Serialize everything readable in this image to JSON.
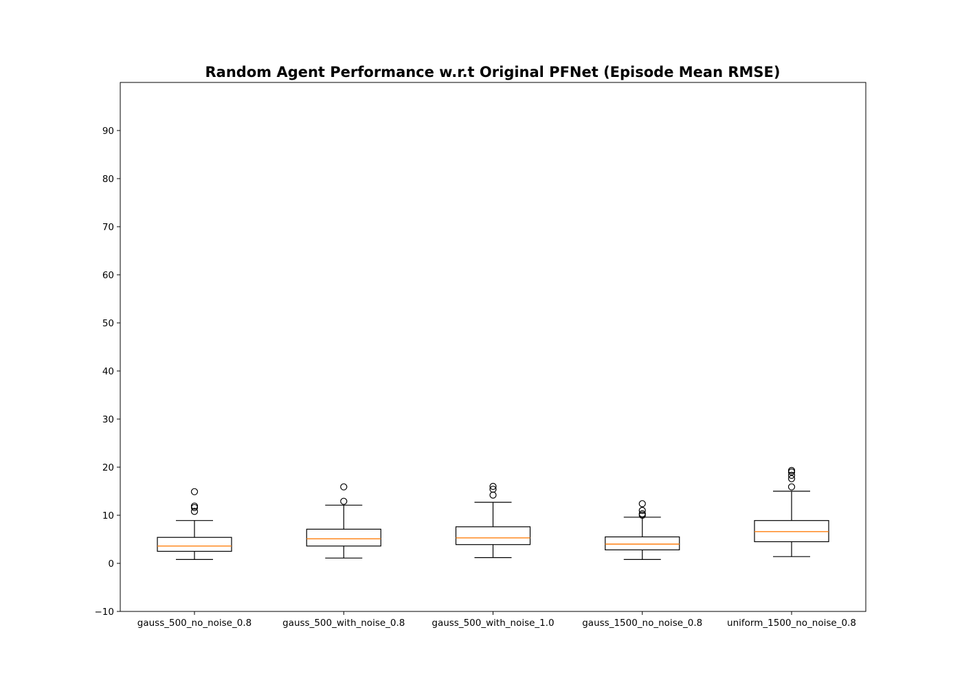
{
  "chart_data": {
    "type": "box",
    "title": "Random Agent Performance w.r.t Original PFNet (Episode Mean RMSE)",
    "xlabel": "",
    "ylabel": "",
    "ylim": [
      -10,
      100
    ],
    "yticks": [
      -10,
      0,
      10,
      20,
      30,
      40,
      50,
      60,
      70,
      80,
      90
    ],
    "grid": false,
    "colors": {
      "box": "#000000",
      "median": "#ff7f0e",
      "flier": "#000000"
    },
    "categories": [
      "gauss_500_no_noise_0.8",
      "gauss_500_with_noise_0.8",
      "gauss_500_with_noise_1.0",
      "gauss_1500_no_noise_0.8",
      "uniform_1500_no_noise_0.8"
    ],
    "boxes": [
      {
        "whisker_low": 0.8,
        "q1": 2.5,
        "median": 3.6,
        "q3": 5.4,
        "whisker_high": 8.9,
        "fliers": [
          10.8,
          11.6,
          11.9,
          14.9
        ]
      },
      {
        "whisker_low": 1.1,
        "q1": 3.6,
        "median": 5.1,
        "q3": 7.1,
        "whisker_high": 12.1,
        "fliers": [
          12.9,
          15.9
        ]
      },
      {
        "whisker_low": 1.2,
        "q1": 3.9,
        "median": 5.3,
        "q3": 7.6,
        "whisker_high": 12.7,
        "fliers": [
          14.2,
          15.4,
          16.0
        ]
      },
      {
        "whisker_low": 0.8,
        "q1": 2.8,
        "median": 4.0,
        "q3": 5.5,
        "whisker_high": 9.6,
        "fliers": [
          10.0,
          10.3,
          11.0,
          12.4
        ]
      },
      {
        "whisker_low": 1.4,
        "q1": 4.5,
        "median": 6.6,
        "q3": 8.9,
        "whisker_high": 15.0,
        "fliers": [
          15.9,
          17.6,
          18.3,
          19.0,
          19.3
        ]
      }
    ]
  }
}
